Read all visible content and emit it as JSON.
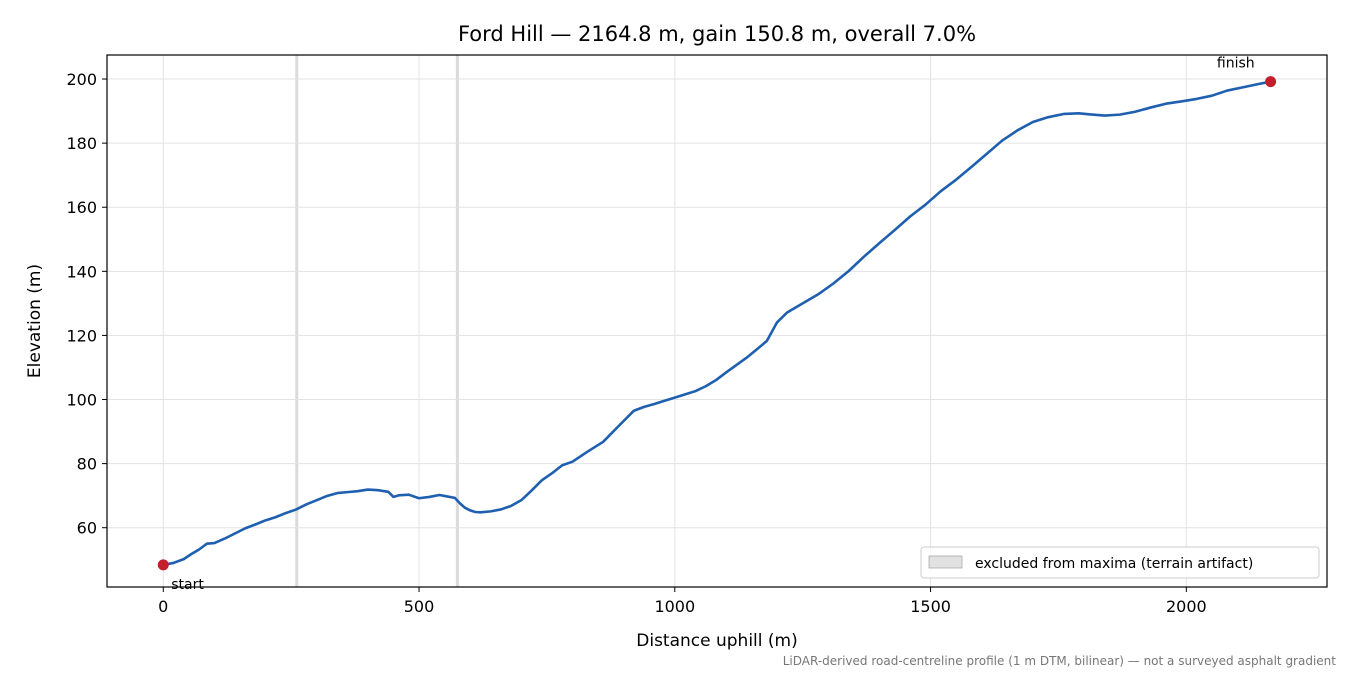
{
  "chart_data": {
    "type": "line",
    "title": "Ford Hill — 2164.8 m, gain 150.8 m, overall 7.0%",
    "xlabel": "Distance uphill (m)",
    "ylabel": "Elevation (m)",
    "xlim": [
      -110,
      2275
    ],
    "ylim": [
      41.5,
      207.5
    ],
    "xticks": [
      0,
      500,
      1000,
      1500,
      2000
    ],
    "yticks": [
      60,
      80,
      100,
      120,
      140,
      160,
      180,
      200
    ],
    "grid": true,
    "line_color": "#1f5fb0",
    "marker_color": "#c41e2a",
    "excluded_color": "#bdbdbd",
    "excluded_regions": [
      [
        258,
        264
      ],
      [
        572,
        578
      ]
    ],
    "legend": {
      "label": "excluded from maxima (terrain artifact)",
      "position": "lower-right"
    },
    "markers": [
      {
        "label": "start",
        "x": 0,
        "y": 48.4
      },
      {
        "label": "finish",
        "x": 2164.8,
        "y": 199.2
      }
    ],
    "series": [
      {
        "x": [
          0,
          20,
          40,
          55,
          70,
          85,
          100,
          120,
          140,
          160,
          180,
          200,
          220,
          240,
          260,
          280,
          300,
          320,
          340,
          360,
          380,
          400,
          420,
          440,
          450,
          460,
          480,
          500,
          520,
          540,
          560,
          570,
          580,
          590,
          600,
          610,
          620,
          640,
          660,
          680,
          700,
          720,
          740,
          760,
          780,
          800,
          830,
          860,
          890,
          920,
          940,
          960,
          980,
          1000,
          1020,
          1040,
          1060,
          1080,
          1100,
          1120,
          1140,
          1160,
          1180,
          1200,
          1220,
          1250,
          1280,
          1310,
          1340,
          1370,
          1400,
          1430,
          1460,
          1490,
          1520,
          1550,
          1580,
          1610,
          1640,
          1670,
          1700,
          1730,
          1760,
          1790,
          1810,
          1840,
          1870,
          1900,
          1930,
          1960,
          1990,
          2020,
          2050,
          2080,
          2110,
          2140,
          2164.8
        ],
        "y": [
          48.4,
          49.0,
          50.2,
          51.8,
          53.2,
          55.0,
          55.2,
          56.6,
          58.2,
          59.8,
          61.0,
          62.3,
          63.3,
          64.6,
          65.7,
          67.3,
          68.6,
          69.9,
          70.8,
          71.1,
          71.4,
          71.9,
          71.7,
          71.2,
          69.6,
          70.1,
          70.3,
          69.2,
          69.6,
          70.2,
          69.6,
          69.3,
          67.6,
          66.2,
          65.4,
          64.9,
          64.8,
          65.1,
          65.7,
          66.8,
          68.6,
          71.6,
          74.8,
          77.0,
          79.5,
          80.6,
          83.8,
          86.8,
          91.7,
          96.5,
          97.7,
          98.6,
          99.6,
          100.6,
          101.6,
          102.6,
          104.1,
          106.0,
          108.4,
          110.7,
          113.0,
          115.6,
          118.3,
          124.1,
          127.2,
          130.0,
          132.8,
          136.2,
          140.1,
          144.6,
          148.8,
          152.9,
          157.1,
          160.8,
          165.0,
          168.6,
          172.6,
          176.7,
          180.8,
          184.0,
          186.6,
          188.1,
          189.1,
          189.3,
          189.0,
          188.6,
          188.9,
          189.8,
          191.1,
          192.3,
          193.0,
          193.8,
          194.8,
          196.4,
          197.4,
          198.4,
          199.2
        ]
      }
    ]
  },
  "footnote": "LiDAR-derived road-centreline profile (1 m DTM, bilinear) — not a surveyed asphalt gradient"
}
